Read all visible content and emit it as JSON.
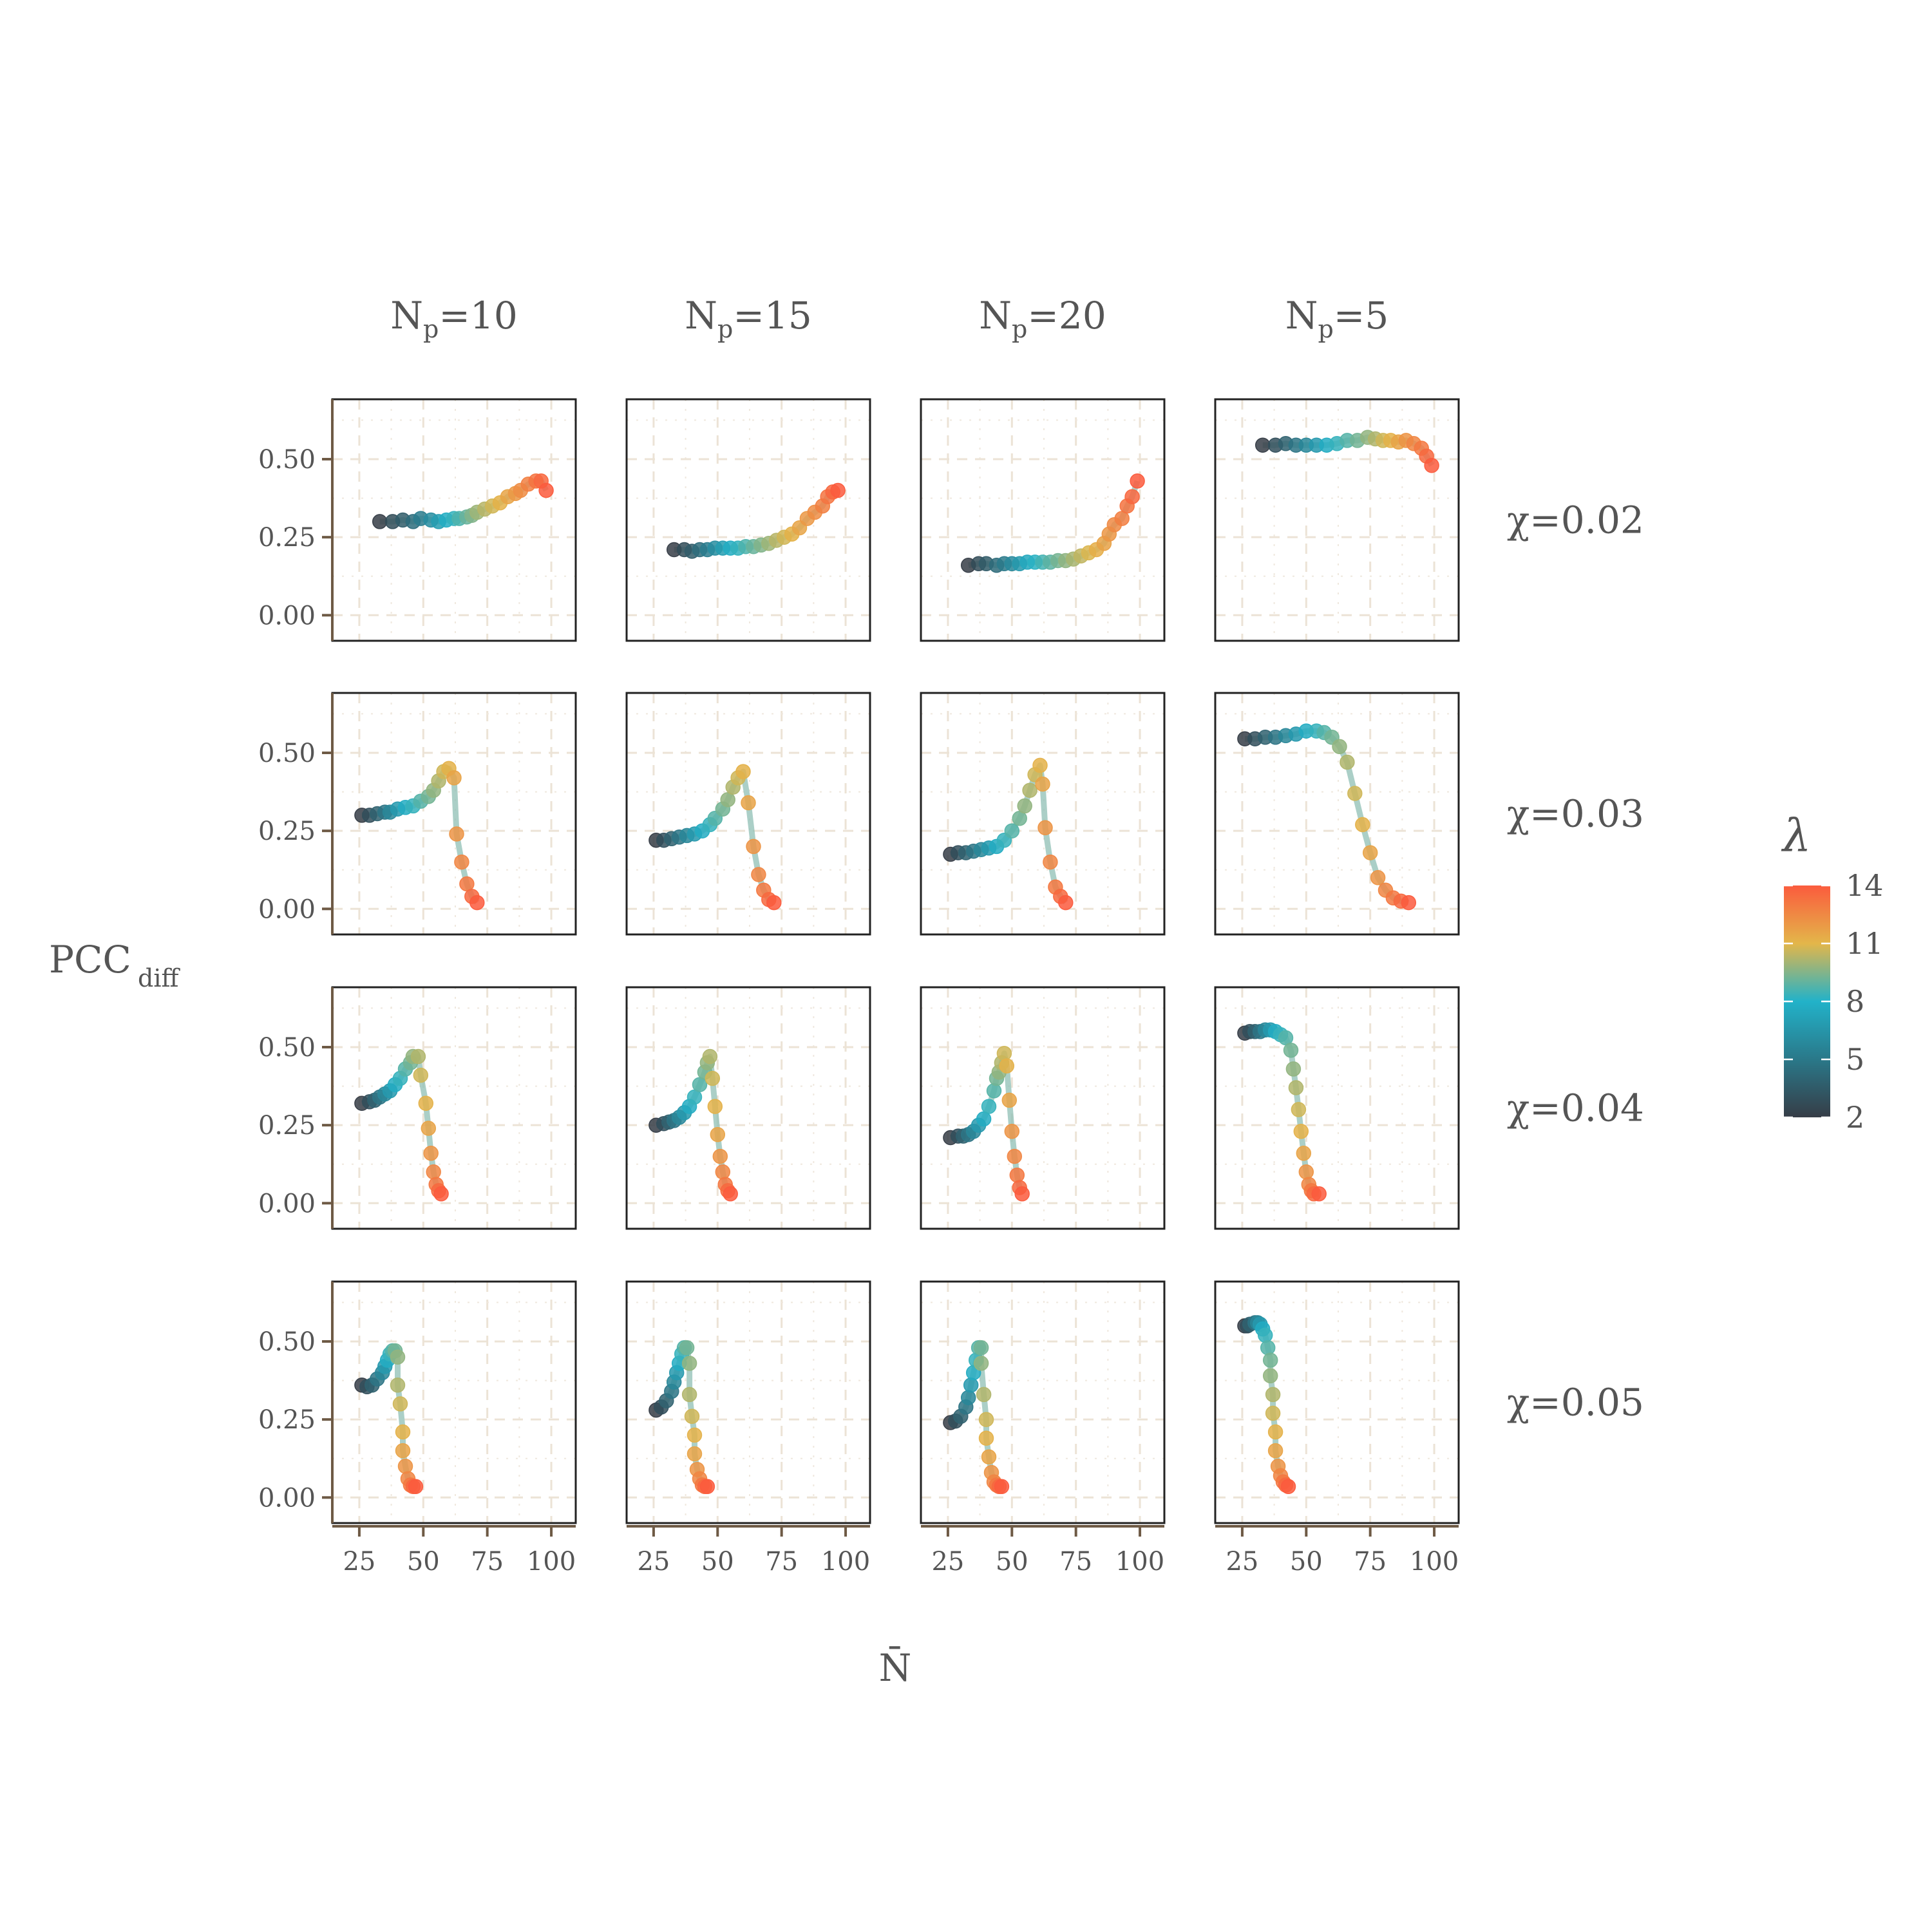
{
  "chart_data": {
    "type": "scatter",
    "layout": "facet-grid",
    "xlabel": "N̄",
    "ylabel": "PCC",
    "ylabel_sub": "diff",
    "xlim": [
      22,
      102
    ],
    "ylim": [
      -0.02,
      0.63
    ],
    "x_ticks": [
      25,
      50,
      75,
      100
    ],
    "x_tick_labels": [
      "25",
      "50",
      "75",
      "100"
    ],
    "y_ticks": [
      0.0,
      0.25,
      0.5
    ],
    "y_tick_labels": [
      "0.00",
      "0.25",
      "0.50"
    ],
    "grid": true,
    "columns": [
      {
        "base": "N",
        "sub": "p",
        "rest": "=10"
      },
      {
        "base": "N",
        "sub": "p",
        "rest": "=15"
      },
      {
        "base": "N",
        "sub": "p",
        "rest": "=20"
      },
      {
        "base": "N",
        "sub": "p",
        "rest": "=5"
      }
    ],
    "rows": [
      "χ=0.02",
      "χ=0.03",
      "χ=0.04",
      "χ=0.05"
    ],
    "color": {
      "variable": "λ",
      "title": "λ",
      "range": [
        2,
        14
      ],
      "ticks": [
        2,
        5,
        8,
        11,
        14
      ],
      "tick_labels": [
        "14",
        "11",
        "8",
        "5",
        "2"
      ],
      "stops": [
        "#363d47",
        "#22b2c9",
        "#e3b64a",
        "#fb5b3d"
      ],
      "position": "right"
    },
    "panels": [
      [
        {
          "x": [
            33,
            38,
            42,
            46,
            49,
            53,
            56,
            59,
            62,
            64,
            67,
            69,
            71,
            74,
            77,
            80,
            83,
            86,
            88,
            91,
            94,
            96,
            98
          ],
          "y": [
            0.3,
            0.3,
            0.305,
            0.3,
            0.31,
            0.305,
            0.3,
            0.305,
            0.31,
            0.31,
            0.315,
            0.32,
            0.33,
            0.34,
            0.35,
            0.36,
            0.38,
            0.39,
            0.4,
            0.42,
            0.43,
            0.43,
            0.4
          ]
        },
        {
          "x": [
            33,
            37,
            40,
            43,
            46,
            49,
            52,
            55,
            58,
            61,
            64,
            67,
            70,
            73,
            76,
            79,
            82,
            85,
            88,
            91,
            93,
            95,
            97
          ],
          "y": [
            0.21,
            0.21,
            0.205,
            0.21,
            0.21,
            0.215,
            0.215,
            0.215,
            0.215,
            0.22,
            0.22,
            0.225,
            0.23,
            0.24,
            0.25,
            0.26,
            0.28,
            0.31,
            0.33,
            0.35,
            0.38,
            0.395,
            0.4
          ]
        },
        {
          "x": [
            33,
            37,
            40,
            44,
            47,
            50,
            53,
            56,
            59,
            62,
            65,
            68,
            71,
            74,
            77,
            80,
            83,
            86,
            88,
            90,
            93,
            95,
            97,
            99
          ],
          "y": [
            0.16,
            0.165,
            0.165,
            0.16,
            0.165,
            0.165,
            0.165,
            0.17,
            0.17,
            0.17,
            0.17,
            0.175,
            0.175,
            0.18,
            0.19,
            0.2,
            0.21,
            0.23,
            0.26,
            0.29,
            0.31,
            0.35,
            0.38,
            0.43
          ]
        },
        {
          "x": [
            33,
            38,
            42,
            46,
            50,
            54,
            58,
            62,
            66,
            70,
            74,
            77,
            80,
            83,
            86,
            89,
            92,
            95,
            97,
            99
          ],
          "y": [
            0.545,
            0.545,
            0.55,
            0.545,
            0.545,
            0.545,
            0.545,
            0.55,
            0.56,
            0.56,
            0.57,
            0.565,
            0.56,
            0.56,
            0.555,
            0.56,
            0.55,
            0.535,
            0.51,
            0.48
          ]
        }
      ],
      [
        {
          "x": [
            26,
            29,
            32,
            35,
            37,
            40,
            43,
            46,
            49,
            52,
            54,
            56,
            58,
            60,
            62,
            63,
            65,
            67,
            69,
            71
          ],
          "y": [
            0.3,
            0.3,
            0.305,
            0.31,
            0.31,
            0.32,
            0.325,
            0.33,
            0.345,
            0.36,
            0.38,
            0.41,
            0.44,
            0.45,
            0.42,
            0.24,
            0.15,
            0.08,
            0.04,
            0.02
          ]
        },
        {
          "x": [
            26,
            29,
            32,
            35,
            38,
            41,
            44,
            47,
            49,
            52,
            54,
            56,
            58,
            60,
            62,
            64,
            66,
            68,
            70,
            72
          ],
          "y": [
            0.22,
            0.22,
            0.225,
            0.23,
            0.235,
            0.24,
            0.25,
            0.27,
            0.29,
            0.32,
            0.35,
            0.39,
            0.42,
            0.44,
            0.34,
            0.2,
            0.11,
            0.06,
            0.03,
            0.02
          ]
        },
        {
          "x": [
            26,
            29,
            32,
            35,
            38,
            41,
            44,
            47,
            50,
            53,
            55,
            57,
            59,
            61,
            62,
            63,
            65,
            67,
            69,
            71
          ],
          "y": [
            0.175,
            0.18,
            0.18,
            0.185,
            0.19,
            0.195,
            0.2,
            0.22,
            0.25,
            0.29,
            0.33,
            0.38,
            0.43,
            0.46,
            0.4,
            0.26,
            0.15,
            0.07,
            0.04,
            0.02
          ]
        },
        {
          "x": [
            26,
            30,
            34,
            38,
            42,
            46,
            50,
            54,
            57,
            60,
            63,
            66,
            69,
            72,
            75,
            78,
            81,
            84,
            87,
            90
          ],
          "y": [
            0.545,
            0.545,
            0.55,
            0.55,
            0.555,
            0.56,
            0.57,
            0.57,
            0.565,
            0.55,
            0.52,
            0.47,
            0.37,
            0.27,
            0.18,
            0.1,
            0.06,
            0.035,
            0.025,
            0.02
          ]
        }
      ],
      [
        {
          "x": [
            26,
            29,
            31,
            33,
            35,
            37,
            39,
            41,
            43,
            45,
            46,
            48,
            49,
            51,
            52,
            53,
            54,
            55,
            56,
            57
          ],
          "y": [
            0.32,
            0.325,
            0.33,
            0.34,
            0.35,
            0.36,
            0.38,
            0.4,
            0.43,
            0.45,
            0.47,
            0.47,
            0.41,
            0.32,
            0.24,
            0.16,
            0.1,
            0.06,
            0.04,
            0.03
          ]
        },
        {
          "x": [
            26,
            29,
            31,
            33,
            35,
            37,
            39,
            41,
            43,
            45,
            46,
            47,
            48,
            49,
            50,
            51,
            52,
            53,
            54,
            55
          ],
          "y": [
            0.25,
            0.255,
            0.26,
            0.265,
            0.275,
            0.29,
            0.31,
            0.34,
            0.38,
            0.42,
            0.45,
            0.47,
            0.4,
            0.31,
            0.22,
            0.15,
            0.1,
            0.06,
            0.04,
            0.03
          ]
        },
        {
          "x": [
            26,
            29,
            31,
            33,
            35,
            37,
            39,
            41,
            43,
            44,
            45,
            46,
            47,
            48,
            49,
            50,
            51,
            52,
            53,
            54
          ],
          "y": [
            0.21,
            0.215,
            0.215,
            0.22,
            0.23,
            0.25,
            0.27,
            0.31,
            0.36,
            0.4,
            0.42,
            0.45,
            0.48,
            0.44,
            0.33,
            0.23,
            0.15,
            0.09,
            0.05,
            0.03
          ]
        },
        {
          "x": [
            26,
            28,
            30,
            32,
            34,
            36,
            38,
            40,
            42,
            44,
            45,
            46,
            47,
            48,
            49,
            50,
            51,
            52,
            53,
            55
          ],
          "y": [
            0.545,
            0.55,
            0.55,
            0.55,
            0.555,
            0.555,
            0.55,
            0.54,
            0.53,
            0.49,
            0.43,
            0.37,
            0.3,
            0.23,
            0.16,
            0.1,
            0.06,
            0.04,
            0.03,
            0.03
          ]
        }
      ],
      [
        {
          "x": [
            26,
            28,
            30,
            32,
            34,
            35,
            36,
            37,
            38,
            39,
            40,
            40,
            41,
            42,
            42,
            43,
            44,
            45,
            46,
            47
          ],
          "y": [
            0.36,
            0.355,
            0.36,
            0.38,
            0.4,
            0.42,
            0.44,
            0.46,
            0.47,
            0.47,
            0.45,
            0.36,
            0.3,
            0.21,
            0.15,
            0.1,
            0.06,
            0.04,
            0.035,
            0.035
          ]
        },
        {
          "x": [
            26,
            28,
            30,
            32,
            33,
            34,
            35,
            36,
            37,
            38,
            39,
            39,
            40,
            41,
            41,
            42,
            43,
            44,
            45,
            46
          ],
          "y": [
            0.28,
            0.29,
            0.31,
            0.34,
            0.37,
            0.4,
            0.43,
            0.46,
            0.48,
            0.48,
            0.43,
            0.33,
            0.26,
            0.2,
            0.14,
            0.09,
            0.06,
            0.04,
            0.035,
            0.035
          ]
        },
        {
          "x": [
            26,
            28,
            30,
            32,
            33,
            34,
            35,
            36,
            37,
            38,
            38,
            39,
            40,
            40,
            41,
            42,
            43,
            44,
            45,
            46
          ],
          "y": [
            0.24,
            0.245,
            0.26,
            0.29,
            0.32,
            0.36,
            0.4,
            0.44,
            0.48,
            0.48,
            0.43,
            0.33,
            0.25,
            0.19,
            0.13,
            0.08,
            0.05,
            0.04,
            0.035,
            0.035
          ]
        },
        {
          "x": [
            26,
            27,
            28,
            30,
            31,
            32,
            33,
            34,
            35,
            36,
            36,
            37,
            37,
            38,
            38,
            39,
            40,
            41,
            42,
            43
          ],
          "y": [
            0.55,
            0.55,
            0.555,
            0.56,
            0.56,
            0.555,
            0.54,
            0.52,
            0.48,
            0.44,
            0.39,
            0.33,
            0.27,
            0.21,
            0.15,
            0.1,
            0.07,
            0.05,
            0.04,
            0.035
          ]
        }
      ]
    ]
  }
}
